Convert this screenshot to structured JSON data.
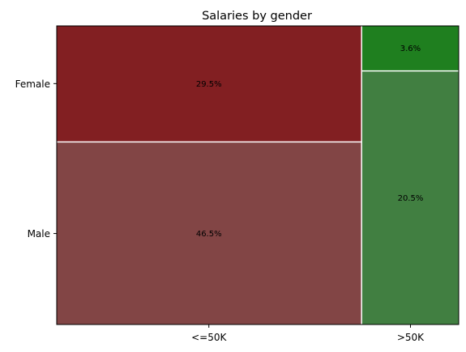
{
  "chart_data": {
    "type": "mosaic",
    "title": "Salaries by gender",
    "xlabel": "",
    "ylabel": "",
    "x_categories": [
      ">50K"
    ],
    "x_categories_all": [
      "<=50K",
      ">50K"
    ],
    "y_categories": [
      "Female",
      "Male"
    ],
    "cells": [
      {
        "x": "<=50K",
        "y": "Female",
        "value": 29.5,
        "label": "29.5%",
        "color": "#821f22"
      },
      {
        "x": "<=50K",
        "y": "Male",
        "value": 46.5,
        "label": "46.5%",
        "color": "#824545"
      },
      {
        "x": ">50K",
        "y": "Female",
        "value": 3.6,
        "label": "3.6%",
        "color": "#1f7f1f"
      },
      {
        "x": ">50K",
        "y": "Male",
        "value": 20.5,
        "label": "20.5%",
        "color": "#417f41"
      }
    ],
    "grid": false,
    "legend": "none"
  }
}
